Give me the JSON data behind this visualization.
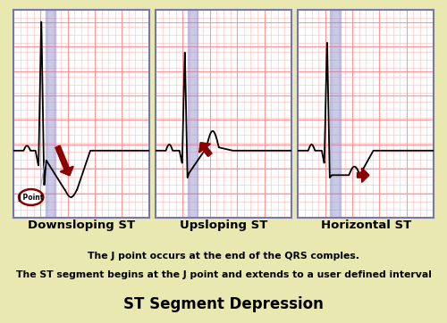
{
  "bg_color": "#e8e8b0",
  "outer_border_color": "#6666aa",
  "title_text": "ST Segment Depression",
  "title_bg": "#9999bb",
  "note_bg": "#f5e6b0",
  "note_text1": "The J point occurs at the end of the QRS comples.",
  "note_text2": "The ST segment begins at the J point and extends to a user defined interval",
  "labels": [
    "Downsloping ST",
    "Upsloping ST",
    "Horizontal ST"
  ],
  "ecg_bg": "#ffffff",
  "grid_color": "#ffbbbb",
  "grid_major_color": "#ff9999",
  "highlight_color": "#8888cc",
  "highlight_alpha": 0.45,
  "panel_border_color": "#7777aa",
  "arrow_color": "#8b0000"
}
